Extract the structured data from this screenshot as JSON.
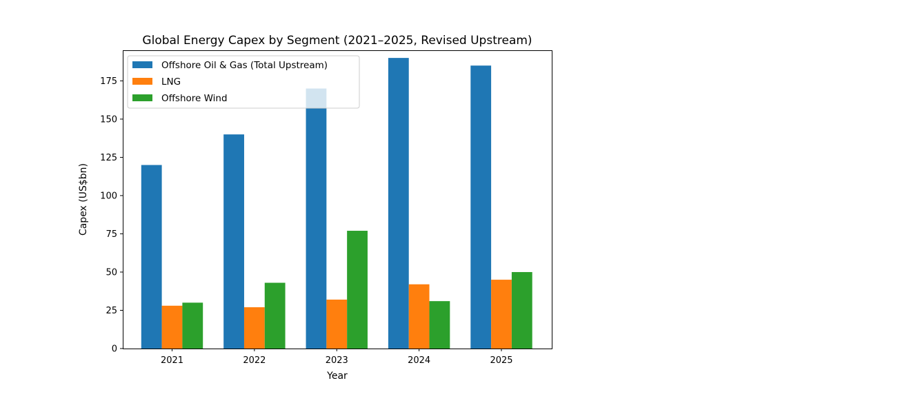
{
  "chart_data": {
    "type": "bar",
    "title": "Global Energy Capex by Segment (2021–2025, Revised Upstream)",
    "xlabel": "Year",
    "ylabel": "Capex (US$bn)",
    "categories": [
      "2021",
      "2022",
      "2023",
      "2024",
      "2025"
    ],
    "ylim": [
      0,
      195
    ],
    "yticks": [
      0,
      25,
      50,
      75,
      100,
      125,
      150,
      175
    ],
    "grid": false,
    "legend_position": "top-left",
    "series": [
      {
        "name": "Offshore Oil & Gas (Total Upstream)",
        "color": "#1f77b4",
        "values": [
          120,
          140,
          170,
          190,
          185
        ]
      },
      {
        "name": "LNG",
        "color": "#ff7f0e",
        "values": [
          28,
          27,
          32,
          42,
          45
        ]
      },
      {
        "name": "Offshore Wind",
        "color": "#2ca02c",
        "values": [
          30,
          43,
          77,
          31,
          50
        ]
      }
    ]
  }
}
